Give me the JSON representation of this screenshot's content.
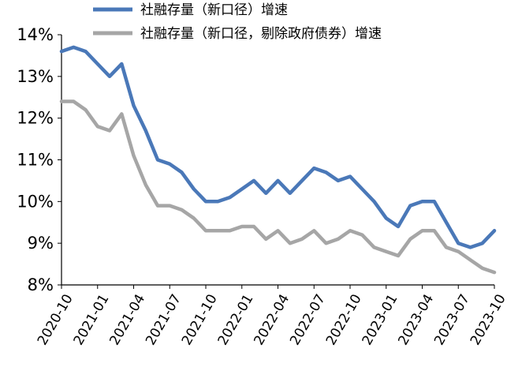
{
  "chart_data": {
    "type": "line",
    "title": "",
    "xlabel": "",
    "ylabel": "",
    "ylim": [
      8,
      14
    ],
    "yticks": [
      "8%",
      "9%",
      "10%",
      "11%",
      "12%",
      "13%",
      "14%"
    ],
    "xtick_labels": [
      "2020-10",
      "2021-01",
      "2021-04",
      "2021-07",
      "2021-10",
      "2022-01",
      "2022-04",
      "2022-07",
      "2022-10",
      "2023-01",
      "2023-04",
      "2023-07",
      "2023-10"
    ],
    "legend_position": "top",
    "grid": false,
    "x": [
      "2020-10",
      "2020-11",
      "2020-12",
      "2021-01",
      "2021-02",
      "2021-03",
      "2021-04",
      "2021-05",
      "2021-06",
      "2021-07",
      "2021-08",
      "2021-09",
      "2021-10",
      "2021-11",
      "2021-12",
      "2022-01",
      "2022-02",
      "2022-03",
      "2022-04",
      "2022-05",
      "2022-06",
      "2022-07",
      "2022-08",
      "2022-09",
      "2022-10",
      "2022-11",
      "2022-12",
      "2023-01",
      "2023-02",
      "2023-03",
      "2023-04",
      "2023-05",
      "2023-06",
      "2023-07",
      "2023-08",
      "2023-09",
      "2023-10"
    ],
    "series": [
      {
        "name": "社融存量（新口径）增速",
        "color": "#4a78b8",
        "values": [
          13.6,
          13.7,
          13.6,
          13.3,
          13.0,
          13.3,
          12.3,
          11.7,
          11.0,
          10.9,
          10.7,
          10.3,
          10.0,
          10.0,
          10.1,
          10.3,
          10.5,
          10.2,
          10.5,
          10.2,
          10.5,
          10.8,
          10.7,
          10.5,
          10.6,
          10.3,
          10.0,
          9.6,
          9.4,
          9.9,
          10.0,
          10.0,
          9.5,
          9.0,
          8.9,
          9.0,
          9.3
        ]
      },
      {
        "name": "社融存量（新口径，剔除政府债券）增速",
        "color": "#a6a6a6",
        "values": [
          12.4,
          12.4,
          12.2,
          11.8,
          11.7,
          12.1,
          11.1,
          10.4,
          9.9,
          9.9,
          9.8,
          9.6,
          9.3,
          9.3,
          9.3,
          9.4,
          9.4,
          9.1,
          9.3,
          9.0,
          9.1,
          9.3,
          9.0,
          9.1,
          9.3,
          9.2,
          8.9,
          8.8,
          8.7,
          9.1,
          9.3,
          9.3,
          8.9,
          8.8,
          8.6,
          8.4,
          8.3
        ]
      }
    ]
  }
}
